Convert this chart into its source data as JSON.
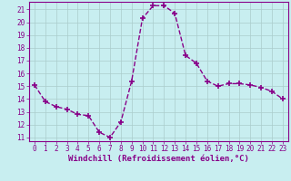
{
  "x": [
    0,
    1,
    2,
    3,
    4,
    5,
    6,
    7,
    8,
    9,
    10,
    11,
    12,
    13,
    14,
    15,
    16,
    17,
    18,
    19,
    20,
    21,
    22,
    23
  ],
  "y": [
    15.1,
    13.8,
    13.4,
    13.2,
    12.8,
    12.7,
    11.4,
    11.0,
    12.2,
    15.4,
    20.3,
    21.3,
    21.3,
    20.7,
    17.4,
    16.8,
    15.4,
    15.0,
    15.2,
    15.2,
    15.1,
    14.9,
    14.6,
    14.0
  ],
  "line_color": "#880088",
  "marker": "+",
  "markersize": 4,
  "markeredgewidth": 1.2,
  "linewidth": 1.0,
  "linestyle": "--",
  "background_color": "#c8eef0",
  "grid_color": "#aacccc",
  "xlabel": "Windchill (Refroidissement éolien,°C)",
  "xlabel_fontsize": 6.5,
  "xlim": [
    -0.5,
    23.5
  ],
  "ylim": [
    10.7,
    21.6
  ],
  "yticks": [
    11,
    12,
    13,
    14,
    15,
    16,
    17,
    18,
    19,
    20,
    21
  ],
  "xticks": [
    0,
    1,
    2,
    3,
    4,
    5,
    6,
    7,
    8,
    9,
    10,
    11,
    12,
    13,
    14,
    15,
    16,
    17,
    18,
    19,
    20,
    21,
    22,
    23
  ],
  "tick_label_fontsize": 5.5,
  "tick_color": "#880088",
  "spine_color": "#880088"
}
